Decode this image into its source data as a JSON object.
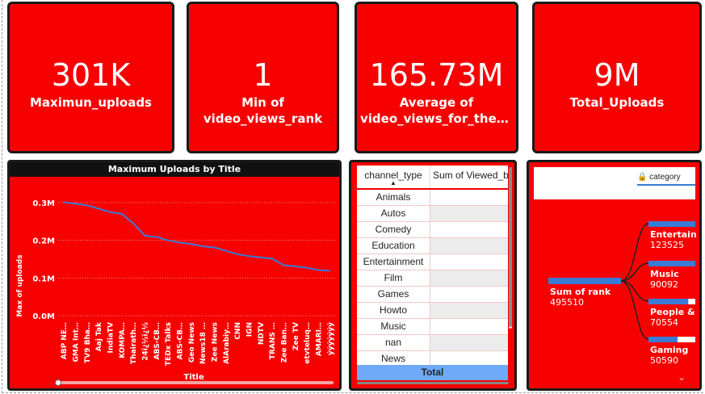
{
  "kpis": [
    {
      "value": "301K",
      "label_lines": [
        "Maximun_uploads"
      ]
    },
    {
      "value": "1",
      "label_lines": [
        "Min of",
        "video_views_rank"
      ]
    },
    {
      "value": "165.73M",
      "label_lines": [
        "Average of",
        "video_views_for_the_las…"
      ]
    },
    {
      "value": "9M",
      "label_lines": [
        "Total_Uploads"
      ]
    }
  ],
  "colors": {
    "accent": "#f70000",
    "line": "#3a7bd5",
    "highlight": "#6eaaf7"
  },
  "chart_data": {
    "type": "line",
    "title": "Maximum Uploads by Title",
    "xlabel": "Title",
    "ylabel": "Max of uploads",
    "y_ticks": [
      "0.3M",
      "0.2M",
      "0.1M",
      "0.0M"
    ],
    "y_tick_values": [
      0.3,
      0.2,
      0.1,
      0.0
    ],
    "ylim": [
      0,
      0.33
    ],
    "grid": true,
    "categories": [
      "ABP NE…",
      "GMA Int…",
      "TV9 Bha…",
      "Aaj Tak",
      "IndiaTV",
      "KOMPA…",
      "Thairath…",
      "24ï¿½ï¿½",
      "ABS-CB…",
      "TEDx Talks",
      "ABS-CB…",
      "Geo News",
      "News18 …",
      "Zee News",
      "AlArabiy…",
      "CNN",
      "IGN",
      "NDTV",
      "TRANS …",
      "Zee Ban…",
      "Zee TV",
      "etvteluq…",
      "AMARI…",
      "ýýýýýýý"
    ],
    "values": [
      0.301,
      0.297,
      0.293,
      0.284,
      0.275,
      0.27,
      0.245,
      0.212,
      0.209,
      0.2,
      0.194,
      0.19,
      0.184,
      0.181,
      0.172,
      0.163,
      0.158,
      0.155,
      0.151,
      0.134,
      0.131,
      0.127,
      0.121,
      0.119
    ]
  },
  "table": {
    "columns": [
      "channel_type",
      "Sum of Viewed_b"
    ],
    "rows": [
      "Animals",
      "Autos",
      "Comedy",
      "Education",
      "Entertainment",
      "Film",
      "Games",
      "Howto",
      "Music",
      "nan",
      "News"
    ],
    "total_label": "Total"
  },
  "decomp": {
    "filter_label": "category",
    "root": {
      "name": "Sum of rank",
      "value": "495510"
    },
    "children": [
      {
        "name": "Entertainm",
        "value": "123525",
        "share": 1.0
      },
      {
        "name": "Music",
        "value": "90092",
        "share": 1.0
      },
      {
        "name": "People & B",
        "value": "70554",
        "share": 0.85
      },
      {
        "name": "Gaming",
        "value": "50590",
        "share": 0.62
      }
    ]
  }
}
